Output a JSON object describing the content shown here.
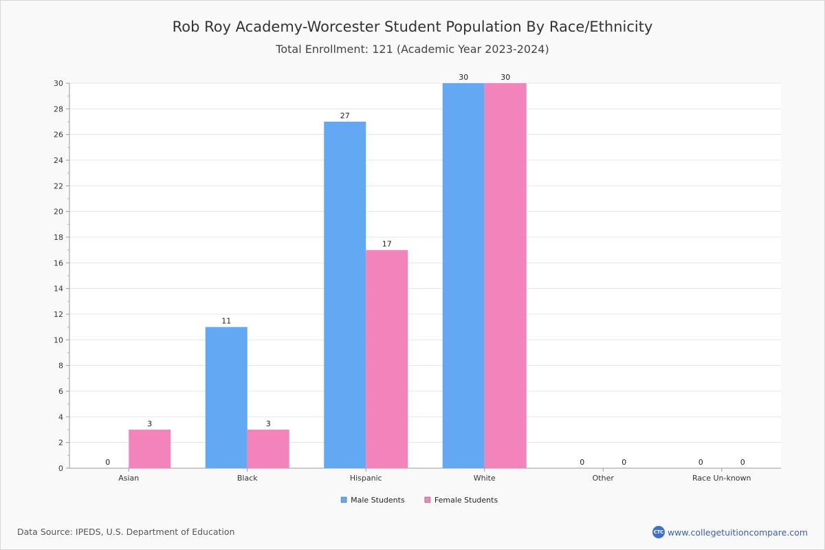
{
  "chart_data": {
    "type": "bar",
    "title": "Rob Roy Academy-Worcester Student Population By Race/Ethnicity",
    "subtitle": "Total Enrollment: 121 (Academic Year 2023-2024)",
    "categories": [
      "Asian",
      "Black",
      "Hispanic",
      "White",
      "Other",
      "Race Un-known"
    ],
    "series": [
      {
        "name": "Male Students",
        "color": "#62a8f3",
        "values": [
          0,
          11,
          27,
          30,
          0,
          0
        ]
      },
      {
        "name": "Female Students",
        "color": "#f283bb",
        "values": [
          3,
          3,
          17,
          30,
          0,
          0
        ]
      }
    ],
    "ylim": [
      0,
      30
    ],
    "yticks": [
      0,
      2,
      4,
      6,
      8,
      10,
      12,
      14,
      16,
      18,
      20,
      22,
      24,
      26,
      28,
      30
    ],
    "xlabel": "",
    "ylabel": "",
    "grid": true,
    "legend_position": "bottom-center"
  },
  "footer": {
    "source": "Data Source: IPEDS, U.S. Department of Education",
    "brand_logo_text": "CTC",
    "brand_url": "www.collegetuitioncompare.com"
  }
}
